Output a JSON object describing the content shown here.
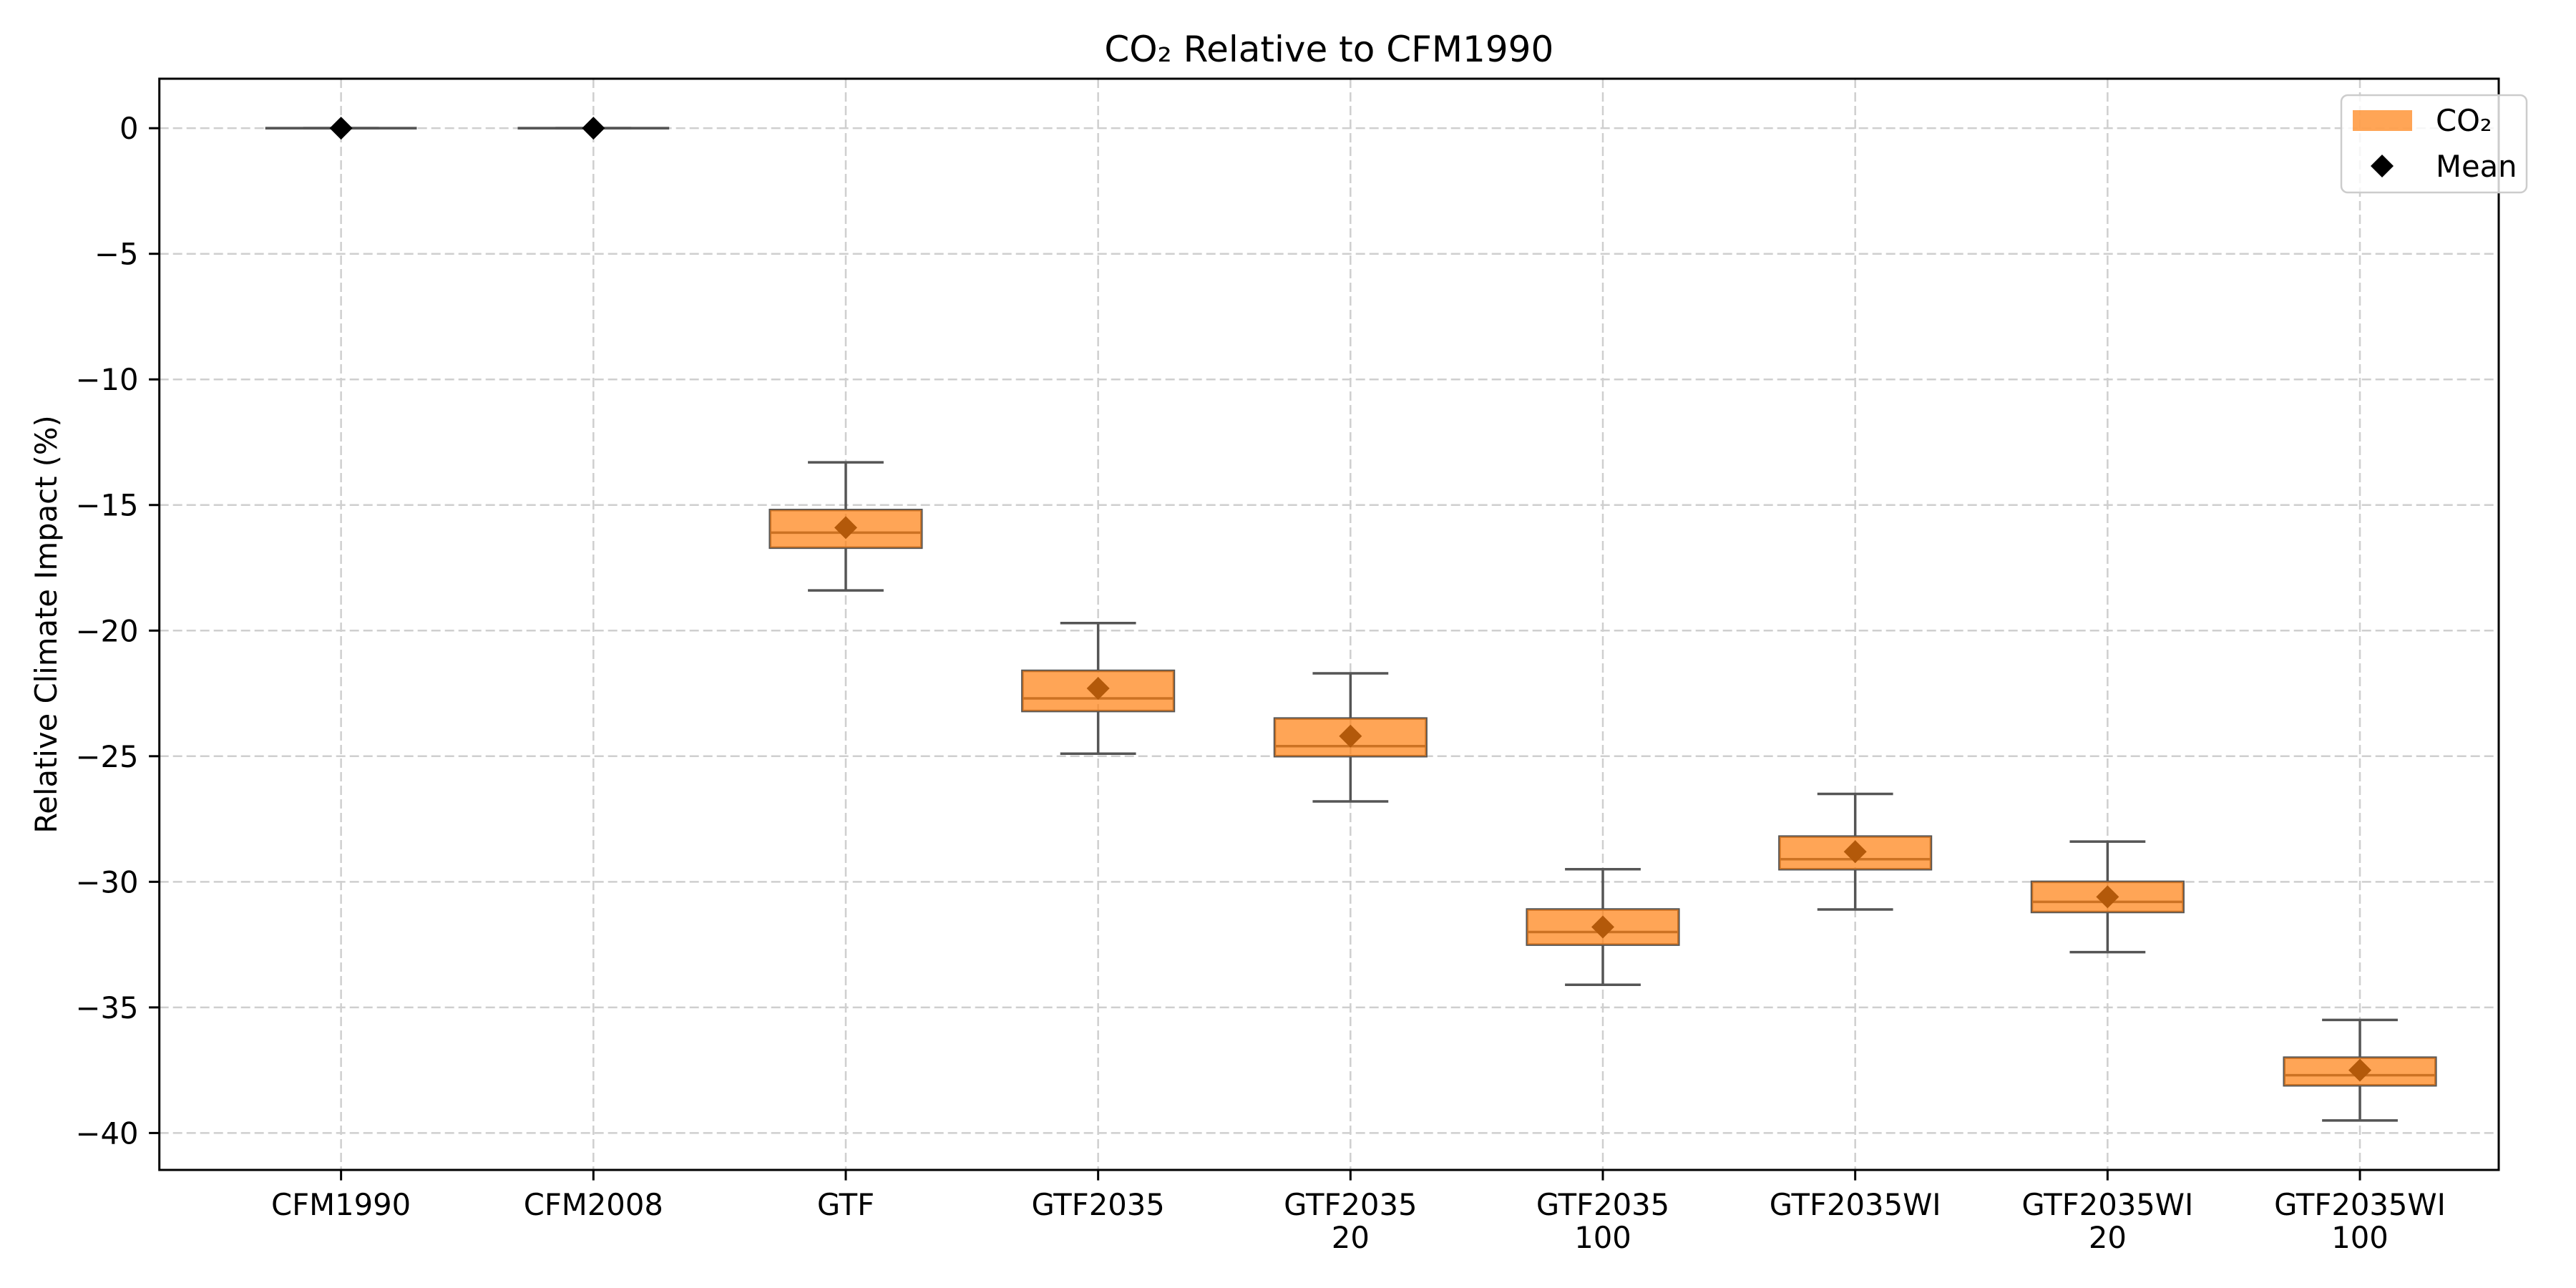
{
  "chart_data": {
    "type": "box",
    "title": "CO₂ Relative to CFM1990",
    "ylabel": "Relative Climate Impact (%)",
    "categories": [
      "CFM1990",
      "CFM2008",
      "GTF",
      "GTF2035",
      "GTF2035\n20",
      "GTF2035\n100",
      "GTF2035WI",
      "GTF2035WI\n20",
      "GTF2035WI\n100"
    ],
    "xlim": [
      0.28,
      9.55
    ],
    "ylim": [
      -41.47,
      1.97
    ],
    "yticks": [
      0,
      -5,
      -10,
      -15,
      -20,
      -25,
      -30,
      -35,
      -40
    ],
    "ytick_labels": [
      "0",
      "−5",
      "−10",
      "−15",
      "−20",
      "−25",
      "−30",
      "−35",
      "−40"
    ],
    "grid": true,
    "legend_position": "top-right",
    "legend": [
      {
        "label": "CO₂",
        "marker": "patch",
        "color": "#ff7f0e"
      },
      {
        "label": "Mean",
        "marker": "diamond",
        "color": "#000000"
      }
    ],
    "box_alpha": 0.7,
    "line_color": "#555555",
    "mean_color": "#000000",
    "series": [
      {
        "name": "CO₂",
        "color": "#ff7f0e",
        "boxes": [
          {
            "whisker_high": 0,
            "q3": 0,
            "median": 0,
            "q1": 0,
            "whisker_low": 0,
            "mean": 0
          },
          {
            "whisker_high": 0,
            "q3": 0,
            "median": 0,
            "q1": 0,
            "whisker_low": 0,
            "mean": 0
          },
          {
            "whisker_high": -13.3,
            "q3": -15.2,
            "median": -16.1,
            "q1": -16.7,
            "whisker_low": -18.4,
            "mean": -15.9
          },
          {
            "whisker_high": -19.7,
            "q3": -21.6,
            "median": -22.7,
            "q1": -23.2,
            "whisker_low": -24.9,
            "mean": -22.3
          },
          {
            "whisker_high": -21.7,
            "q3": -23.5,
            "median": -24.6,
            "q1": -25.0,
            "whisker_low": -26.8,
            "mean": -24.2
          },
          {
            "whisker_high": -29.5,
            "q3": -31.1,
            "median": -32.0,
            "q1": -32.5,
            "whisker_low": -34.1,
            "mean": -31.8
          },
          {
            "whisker_high": -26.5,
            "q3": -28.2,
            "median": -29.1,
            "q1": -29.5,
            "whisker_low": -31.1,
            "mean": -28.8
          },
          {
            "whisker_high": -28.4,
            "q3": -30.0,
            "median": -30.8,
            "q1": -31.2,
            "whisker_low": -32.8,
            "mean": -30.6
          },
          {
            "whisker_high": -35.5,
            "q3": -37.0,
            "median": -37.7,
            "q1": -38.1,
            "whisker_low": -39.5,
            "mean": -37.5
          }
        ]
      }
    ]
  }
}
